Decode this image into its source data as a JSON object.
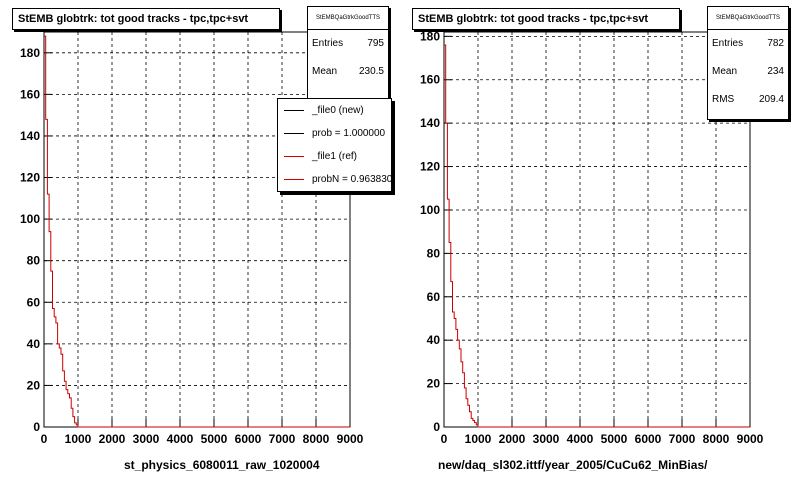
{
  "colors": {
    "ref": "#cc0000",
    "new": "#000000",
    "frame": "#000000",
    "background": "#ffffff"
  },
  "left": {
    "title": "StEMB globtrk: tot good tracks - tpc,tpc+svt",
    "stats": {
      "name": "StEMBQaGtrkGoodTTS",
      "entries_label": "Entries",
      "entries": "795",
      "mean_label": "Mean",
      "mean": "230.5"
    },
    "legend": [
      {
        "label": "_file0 (new)",
        "color": "#000000"
      },
      {
        "label": "prob = 1.000000",
        "color": "#000000"
      },
      {
        "label": "_file1 (ref)",
        "color": "#cc0000"
      },
      {
        "label": "probN = 0.963830",
        "color": "#cc0000"
      }
    ],
    "xtitle": "st_physics_6080011_raw_1020004"
  },
  "right": {
    "title": "StEMB globtrk: tot good tracks - tpc,tpc+svt",
    "stats": {
      "name": "StEMBQaGtrkGoodTTS",
      "entries_label": "Entries",
      "entries": "782",
      "mean_label": "Mean",
      "mean": "234",
      "rms_label": "RMS",
      "rms": "209.4"
    },
    "xtitle": "new/daq_sl302.ittf/year_2005/CuCu62_MinBias/"
  },
  "chart_data": [
    {
      "type": "line",
      "title": "StEMB globtrk: tot good tracks - tpc,tpc+svt",
      "xlabel": "st_physics_6080011_raw_1020004",
      "ylabel": "",
      "xlim": [
        0,
        9000
      ],
      "ylim": [
        0,
        190
      ],
      "xticks": [
        0,
        1000,
        2000,
        3000,
        4000,
        5000,
        6000,
        7000,
        8000,
        9000
      ],
      "yticks": [
        0,
        20,
        40,
        60,
        80,
        100,
        120,
        140,
        160,
        180
      ],
      "grid": true,
      "legend_position": "top-right",
      "series": [
        {
          "name": "_file1 (ref)",
          "color": "#cc0000",
          "x": [
            0,
            50,
            100,
            150,
            200,
            250,
            300,
            350,
            400,
            450,
            500,
            550,
            600,
            650,
            700,
            750,
            800,
            850,
            900,
            950,
            1000,
            1100,
            9000
          ],
          "y": [
            188,
            148,
            112,
            94,
            75,
            57,
            53,
            50,
            40,
            38,
            35,
            27,
            22,
            18,
            16,
            14,
            9,
            5,
            2,
            1,
            0,
            0,
            0
          ]
        }
      ]
    },
    {
      "type": "line",
      "title": "StEMB globtrk: tot good tracks - tpc,tpc+svt",
      "xlabel": "new/daq_sl302.ittf/year_2005/CuCu62_MinBias/",
      "ylabel": "",
      "xlim": [
        0,
        9000
      ],
      "ylim": [
        0,
        182
      ],
      "xticks": [
        0,
        1000,
        2000,
        3000,
        4000,
        5000,
        6000,
        7000,
        8000,
        9000
      ],
      "yticks": [
        0,
        20,
        40,
        60,
        80,
        100,
        120,
        140,
        160,
        180
      ],
      "grid": true,
      "series": [
        {
          "name": "",
          "color": "#cc0000",
          "x": [
            0,
            50,
            100,
            150,
            200,
            250,
            300,
            350,
            400,
            450,
            500,
            550,
            600,
            650,
            700,
            750,
            800,
            850,
            900,
            950,
            1000,
            1100,
            9000
          ],
          "y": [
            176,
            140,
            105,
            85,
            67,
            53,
            50,
            45,
            40,
            36,
            30,
            25,
            18,
            13,
            10,
            7,
            4,
            3,
            2,
            1,
            0,
            0,
            0
          ]
        }
      ]
    }
  ]
}
